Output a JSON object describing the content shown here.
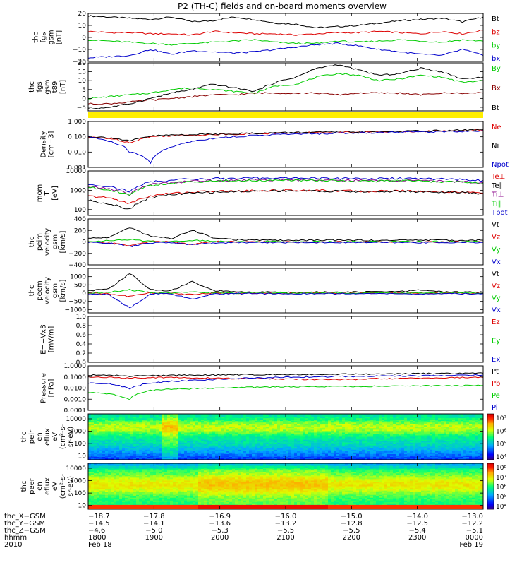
{
  "figure": {
    "title": "P2 (TH-C) fields and on-board moments overview"
  },
  "chart_data": [
    {
      "type": "line",
      "title": "",
      "ylabel": [
        "thc",
        "fgs",
        "gsm",
        "[nT]"
      ],
      "yticks": [
        "20",
        "10",
        "0",
        "−10",
        "−20"
      ],
      "ylim": [
        -20,
        20
      ],
      "series": [
        {
          "name": "Bt",
          "color": "#000000",
          "values": [
            18,
            17,
            16,
            15,
            17,
            13,
            14,
            17,
            15,
            12,
            11,
            8,
            9,
            10,
            12,
            14,
            15,
            16,
            13,
            17
          ]
        },
        {
          "name": "bz",
          "color": "#dd0000",
          "values": [
            5,
            4,
            4,
            3,
            3,
            2,
            5,
            4,
            3,
            3,
            2,
            3,
            4,
            4,
            5,
            4,
            3,
            5,
            3,
            6
          ]
        },
        {
          "name": "by",
          "color": "#00cc00",
          "values": [
            -2,
            -3,
            -4,
            -5,
            -6,
            -5,
            -4,
            -3,
            -2,
            -4,
            -5,
            -5,
            -3,
            -4,
            -3,
            -2,
            -3,
            -4,
            -2,
            -3
          ]
        },
        {
          "name": "bx",
          "color": "#0000cc",
          "values": [
            -17,
            -16,
            -15,
            -10,
            -14,
            -11,
            -12,
            -13,
            -12,
            -10,
            -8,
            -6,
            -5,
            -7,
            -10,
            -12,
            -14,
            -15,
            -10,
            -15
          ]
        }
      ]
    },
    {
      "type": "line",
      "title": "",
      "ylabel": [
        "thc",
        "fgs",
        "gsm",
        "t89",
        "[nT]"
      ],
      "yticks": [
        "20",
        "15",
        "10",
        "5",
        "0",
        "−5"
      ],
      "ylim": [
        -7,
        20
      ],
      "series": [
        {
          "name": "By",
          "color": "#00cc00",
          "values": [
            0,
            1,
            2,
            3,
            5,
            6,
            5,
            4,
            3,
            7,
            8,
            12,
            14,
            13,
            10,
            11,
            13,
            12,
            9,
            10
          ]
        },
        {
          "name": "Bx",
          "color": "#880000",
          "values": [
            -3,
            -3,
            -2,
            -1,
            0,
            1,
            2,
            2,
            3,
            3,
            3,
            3,
            2,
            3,
            3,
            3,
            2,
            3,
            3,
            3
          ]
        },
        {
          "name": "Bt",
          "color": "#000000",
          "values": [
            -6,
            -5,
            -3,
            0,
            3,
            5,
            8,
            6,
            4,
            9,
            12,
            17,
            19,
            16,
            13,
            14,
            17,
            15,
            11,
            12
          ]
        }
      ]
    },
    {
      "type": "line",
      "title": "",
      "ylabel": [
        "Density",
        "[cm−3]"
      ],
      "yticks": [
        "1.000",
        "0.100",
        "0.010",
        "0.001"
      ],
      "ylim": [
        0.001,
        1.0
      ],
      "yscale": "log",
      "series": [
        {
          "name": "Ne",
          "color": "#dd0000",
          "values": [
            0.09,
            0.08,
            0.04,
            0.1,
            0.12,
            0.13,
            0.14,
            0.15,
            0.16,
            0.17,
            0.18,
            0.19,
            0.2,
            0.2,
            0.21,
            0.22,
            0.23,
            0.24,
            0.26,
            0.28
          ]
        },
        {
          "name": "Ni",
          "color": "#000000",
          "values": [
            0.1,
            0.09,
            0.05,
            0.11,
            0.13,
            0.14,
            0.15,
            0.16,
            0.17,
            0.18,
            0.19,
            0.2,
            0.21,
            0.21,
            0.22,
            0.23,
            0.24,
            0.25,
            0.27,
            0.3
          ]
        },
        {
          "name": "Npot",
          "color": "#0000cc",
          "values": [
            0.1,
            0.05,
            0.01,
            0.002,
            0.02,
            0.05,
            0.08,
            0.1,
            0.12,
            0.14,
            0.15,
            0.16,
            0.17,
            0.18,
            0.19,
            0.2,
            0.21,
            0.22,
            0.23,
            0.25
          ]
        }
      ]
    },
    {
      "type": "line",
      "title": "",
      "ylabel": [
        "mom",
        "T",
        "[eV]"
      ],
      "yticks": [
        "10000",
        "1000",
        "100"
      ],
      "ylim": [
        50,
        10000
      ],
      "yscale": "log",
      "series": [
        {
          "name": "Te⊥",
          "color": "#dd0000",
          "values": [
            500,
            400,
            200,
            500,
            700,
            800,
            900,
            900,
            950,
            1000,
            1000,
            1000,
            950,
            900,
            900,
            950,
            900,
            850,
            800,
            700
          ]
        },
        {
          "name": "Te∥",
          "color": "#000000",
          "values": [
            300,
            200,
            100,
            400,
            600,
            700,
            800,
            850,
            900,
            950,
            950,
            900,
            900,
            850,
            850,
            900,
            850,
            800,
            750,
            650
          ]
        },
        {
          "name": "Ti⊥",
          "color": "#880088",
          "values": [
            1500,
            1200,
            600,
            2000,
            2500,
            3000,
            3200,
            3300,
            3400,
            3500,
            3500,
            3400,
            3300,
            3200,
            3200,
            3300,
            3100,
            3000,
            2800,
            2500
          ]
        },
        {
          "name": "Ti∥",
          "color": "#00cc00",
          "values": [
            1400,
            1100,
            500,
            1800,
            2300,
            2800,
            3000,
            3100,
            3200,
            3300,
            3300,
            3200,
            3100,
            3000,
            3000,
            3100,
            2900,
            2800,
            2600,
            2300
          ]
        },
        {
          "name": "Tpot",
          "color": "#0000cc",
          "values": [
            2000,
            1600,
            800,
            2800,
            3300,
            3800,
            4000,
            4100,
            4200,
            4300,
            4300,
            4200,
            4100,
            4000,
            4000,
            4100,
            3900,
            3800,
            3600,
            3200
          ]
        }
      ]
    },
    {
      "type": "line",
      "title": "",
      "ylabel": [
        "thc",
        "peim",
        "velocity",
        "gsm",
        "[km/s]"
      ],
      "yticks": [
        "400",
        "200",
        "0",
        "−200",
        "−400"
      ],
      "ylim": [
        -400,
        400
      ],
      "series": [
        {
          "name": "Vt",
          "color": "#000000",
          "values": [
            60,
            80,
            250,
            100,
            60,
            200,
            80,
            40,
            30,
            30,
            25,
            30,
            30,
            30,
            25,
            30,
            35,
            30,
            25,
            30
          ]
        },
        {
          "name": "Vz",
          "color": "#dd0000",
          "values": [
            0,
            -20,
            -60,
            10,
            0,
            -40,
            10,
            0,
            0,
            0,
            0,
            0,
            0,
            0,
            0,
            0,
            0,
            0,
            0,
            0
          ]
        },
        {
          "name": "Vy",
          "color": "#00cc00",
          "values": [
            10,
            20,
            40,
            10,
            5,
            30,
            10,
            5,
            5,
            5,
            5,
            5,
            5,
            5,
            5,
            5,
            5,
            5,
            5,
            5
          ]
        },
        {
          "name": "Vx",
          "color": "#0000cc",
          "values": [
            -10,
            -20,
            -80,
            -20,
            -10,
            -50,
            -20,
            -10,
            -10,
            -10,
            -10,
            -10,
            -10,
            -10,
            -10,
            -10,
            -10,
            -10,
            -10,
            -10
          ]
        }
      ]
    },
    {
      "type": "line",
      "title": "",
      "ylabel": [
        "thc",
        "peem",
        "velocity",
        "gsm",
        "[km/s]"
      ],
      "yticks": [
        "1000",
        "500",
        "0",
        "−500",
        "−1000"
      ],
      "ylim": [
        -1200,
        1500
      ],
      "series": [
        {
          "name": "Vt",
          "color": "#000000",
          "values": [
            150,
            250,
            1200,
            200,
            150,
            700,
            150,
            80,
            60,
            60,
            50,
            60,
            60,
            60,
            100,
            80,
            200,
            80,
            60,
            60
          ]
        },
        {
          "name": "Vz",
          "color": "#dd0000",
          "values": [
            0,
            -50,
            -200,
            20,
            0,
            -100,
            20,
            0,
            0,
            0,
            0,
            0,
            0,
            0,
            0,
            0,
            0,
            0,
            0,
            0
          ]
        },
        {
          "name": "Vy",
          "color": "#00cc00",
          "values": [
            20,
            50,
            200,
            20,
            10,
            100,
            20,
            10,
            10,
            10,
            10,
            10,
            10,
            10,
            10,
            10,
            10,
            10,
            10,
            10
          ]
        },
        {
          "name": "Vx",
          "color": "#0000cc",
          "values": [
            -50,
            -100,
            -900,
            -50,
            -30,
            -400,
            -50,
            -30,
            -30,
            -30,
            -30,
            -30,
            -30,
            -30,
            -40,
            -30,
            -80,
            -30,
            -30,
            -30
          ]
        }
      ]
    },
    {
      "type": "line",
      "title": "",
      "ylabel": [
        "E=−VxB",
        "[mV/m]"
      ],
      "yticks": [
        "1.0",
        "0.8",
        "0.6",
        "0.4",
        "0.2",
        "0.0"
      ],
      "ylim": [
        0,
        1
      ],
      "series": [
        {
          "name": "Ez",
          "color": "#dd0000",
          "values": []
        },
        {
          "name": "Ey",
          "color": "#00cc00",
          "values": []
        },
        {
          "name": "Ex",
          "color": "#0000cc",
          "values": []
        }
      ]
    },
    {
      "type": "line",
      "title": "",
      "ylabel": [
        "Pressure",
        "[nPa]"
      ],
      "yticks": [
        "1.0000",
        "0.1000",
        "0.0100",
        "0.0010",
        "0.0001"
      ],
      "ylim": [
        0.0001,
        1.0
      ],
      "yscale": "log",
      "series": [
        {
          "name": "Pt",
          "color": "#000000",
          "values": [
            0.15,
            0.14,
            0.12,
            0.13,
            0.14,
            0.15,
            0.15,
            0.16,
            0.16,
            0.17,
            0.17,
            0.17,
            0.18,
            0.18,
            0.19,
            0.19,
            0.2,
            0.2,
            0.21,
            0.22
          ]
        },
        {
          "name": "Pb",
          "color": "#dd0000",
          "values": [
            0.1,
            0.09,
            0.08,
            0.09,
            0.09,
            0.08,
            0.08,
            0.07,
            0.07,
            0.07,
            0.06,
            0.06,
            0.06,
            0.06,
            0.07,
            0.07,
            0.08,
            0.08,
            0.09,
            0.09
          ]
        },
        {
          "name": "Pe",
          "color": "#00cc00",
          "values": [
            0.004,
            0.003,
            0.001,
            0.006,
            0.008,
            0.009,
            0.01,
            0.011,
            0.012,
            0.013,
            0.013,
            0.014,
            0.014,
            0.014,
            0.015,
            0.015,
            0.016,
            0.016,
            0.017,
            0.017
          ]
        },
        {
          "name": "Pi",
          "color": "#0000cc",
          "values": [
            0.03,
            0.025,
            0.008,
            0.03,
            0.04,
            0.05,
            0.06,
            0.07,
            0.08,
            0.09,
            0.1,
            0.1,
            0.11,
            0.11,
            0.12,
            0.12,
            0.13,
            0.13,
            0.14,
            0.15
          ]
        }
      ]
    },
    {
      "type": "heatmap",
      "title": "",
      "ylabel": [
        "thc",
        "peir",
        "en",
        "eflux",
        "eV",
        "(cm²-s-",
        "sr-eV)"
      ],
      "yticks": [
        "10000",
        "1000",
        "100",
        "10"
      ],
      "ylim": [
        5,
        25000
      ],
      "yscale": "log",
      "colorbar": {
        "ticks": [
          "10⁷",
          "10⁶",
          "10⁵",
          "10⁴"
        ],
        "range": [
          3000,
          20000000
        ]
      }
    },
    {
      "type": "heatmap",
      "title": "",
      "ylabel": [
        "thc",
        "peer",
        "en",
        "eflux",
        "eV",
        "(cm²-s-",
        "sr-eV)"
      ],
      "yticks": [
        "10000",
        "1000",
        "100",
        "10"
      ],
      "ylim": [
        5,
        25000
      ],
      "yscale": "log",
      "colorbar": {
        "ticks": [
          "10⁸",
          "10⁷",
          "10⁶",
          "10⁵",
          "10⁴"
        ],
        "range": [
          3000,
          200000000
        ]
      }
    }
  ],
  "orbit_table": {
    "labels": [
      "thc_X−GSM",
      "thc_Y−GSM",
      "thc_Z−GSM",
      "hhmm",
      "2010"
    ],
    "columns": [
      [
        "−18.7",
        "−14.5",
        "−4.6",
        "1800",
        "Feb 18"
      ],
      [
        "−17.8",
        "−14.1",
        "−5.0",
        "1900",
        ""
      ],
      [
        "−16.9",
        "−13.6",
        "−5.3",
        "2000",
        ""
      ],
      [
        "−16.0",
        "−13.2",
        "−5.5",
        "2100",
        ""
      ],
      [
        "−15.0",
        "−12.8",
        "−5.5",
        "2200",
        ""
      ],
      [
        "−14.0",
        "−12.5",
        "−5.4",
        "2300",
        ""
      ],
      [
        "−13.0",
        "−12.2",
        "−5.1",
        "0000",
        "Feb 19"
      ]
    ]
  }
}
